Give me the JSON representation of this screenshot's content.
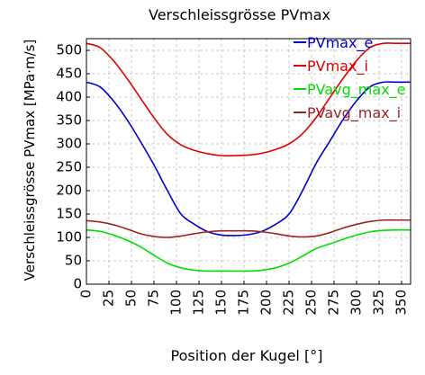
{
  "chart_data": {
    "type": "line",
    "title": "Verschleissgrösse PVmax",
    "xlabel": "Position der Kugel [°]",
    "ylabel": "Verschleissgrösse PVmax [MPa·m/s]",
    "xlim": [
      0,
      360
    ],
    "ylim": [
      0,
      525
    ],
    "x_ticks": [
      0,
      25,
      50,
      75,
      100,
      125,
      150,
      175,
      200,
      225,
      250,
      275,
      300,
      325,
      350
    ],
    "y_ticks": [
      0,
      50,
      100,
      150,
      200,
      250,
      300,
      350,
      400,
      450,
      500
    ],
    "grid": true,
    "legend_position": "top-right",
    "x": [
      0,
      15,
      30,
      45,
      60,
      75,
      90,
      105,
      120,
      135,
      150,
      165,
      180,
      195,
      210,
      225,
      240,
      255,
      270,
      285,
      300,
      315,
      330,
      345,
      360
    ],
    "series": [
      {
        "name": "PVmax_e",
        "color": "#0000cc",
        "values": [
          432,
          422,
          392,
          352,
          305,
          255,
          200,
          150,
          128,
          112,
          105,
          104,
          106,
          113,
          128,
          150,
          200,
          258,
          305,
          352,
          392,
          422,
          432,
          432,
          432
        ]
      },
      {
        "name": "PVmax_i",
        "color": "#e00000",
        "values": [
          515,
          506,
          478,
          440,
          398,
          356,
          320,
          298,
          286,
          279,
          275,
          275,
          276,
          280,
          288,
          300,
          322,
          356,
          398,
          440,
          478,
          506,
          515,
          515,
          515
        ]
      },
      {
        "name": "PVavg_max_e",
        "color": "#00dd00",
        "values": [
          116,
          113,
          105,
          94,
          80,
          62,
          45,
          35,
          30,
          28,
          28,
          28,
          28,
          30,
          35,
          45,
          60,
          76,
          86,
          96,
          105,
          112,
          115,
          116,
          116
        ]
      },
      {
        "name": "PVavg_max_i",
        "color": "#9b2323",
        "values": [
          136,
          133,
          127,
          118,
          108,
          102,
          100,
          103,
          108,
          112,
          114,
          114,
          114,
          112,
          108,
          103,
          101,
          103,
          110,
          120,
          128,
          134,
          137,
          137,
          137
        ]
      }
    ]
  }
}
